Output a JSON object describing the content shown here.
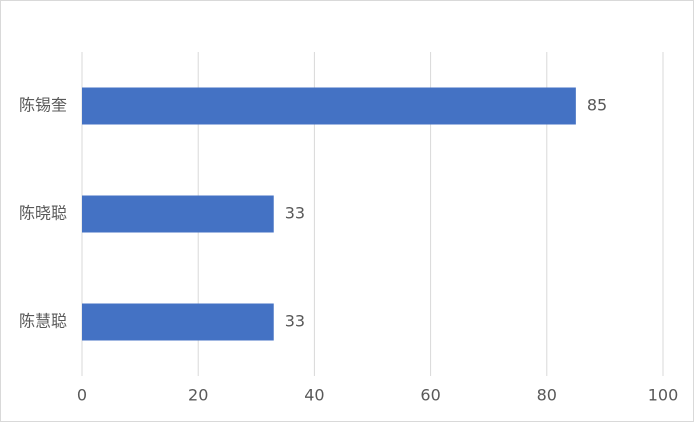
{
  "chart_data": {
    "type": "bar",
    "orientation": "horizontal",
    "categories": [
      "陈锡奎",
      "陈晓聪",
      "陈慧聪"
    ],
    "values": [
      85,
      33,
      33
    ],
    "color": "#4472c4",
    "xlim": [
      0,
      100
    ],
    "xticks": [
      0,
      20,
      40,
      60,
      80,
      100
    ],
    "grid": true
  }
}
